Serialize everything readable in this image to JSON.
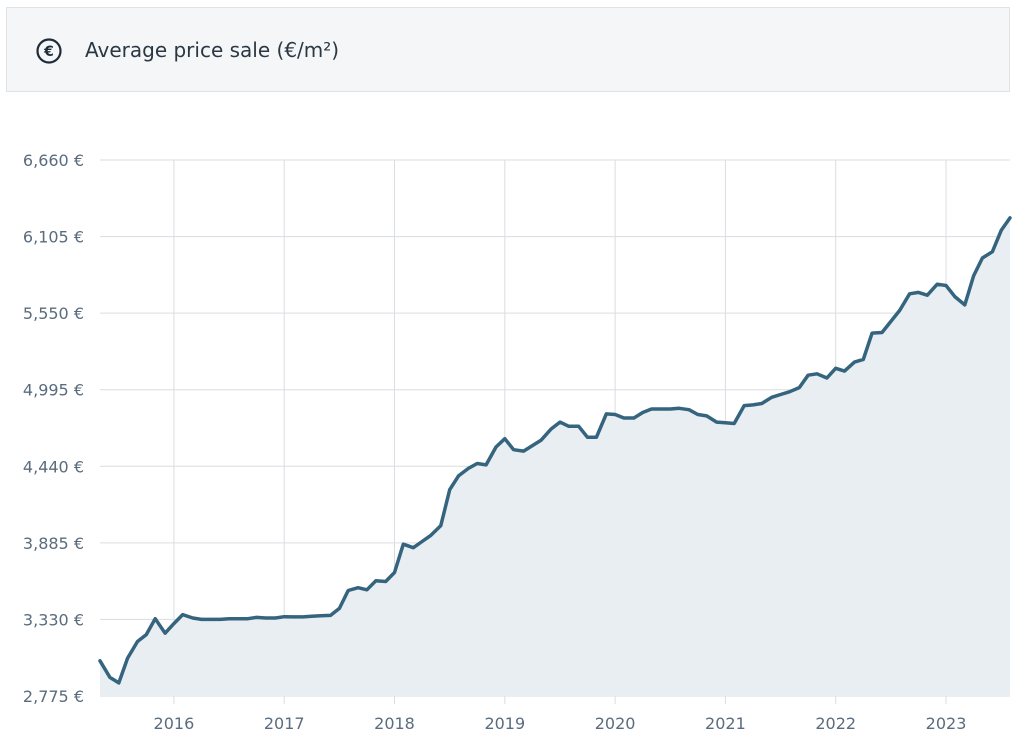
{
  "header": {
    "title": "Average price sale (€/m²)",
    "icon": "euro-circle-icon"
  },
  "colors": {
    "line": "#35647e",
    "area": "#e9eef3",
    "grid": "#dadde1",
    "tick_text": "#5a6c7d"
  },
  "chart_data": {
    "type": "area",
    "title": "Average price sale (€/m²)",
    "xlabel": "",
    "ylabel": "",
    "ylim": [
      2775,
      6660
    ],
    "xlim": [
      2015.33,
      2023.58
    ],
    "y_ticks": [
      6660,
      6105,
      5550,
      4995,
      4440,
      3885,
      3330,
      2775
    ],
    "y_tick_labels": [
      "6,660 €",
      "6,105 €",
      "5,550 €",
      "4,995 €",
      "4,440 €",
      "3,885 €",
      "3,330 €",
      "2,775 €"
    ],
    "x_ticks": [
      2016,
      2017,
      2018,
      2019,
      2020,
      2021,
      2022,
      2023
    ],
    "x_tick_labels": [
      "2016",
      "2017",
      "2018",
      "2019",
      "2020",
      "2021",
      "2022",
      "2023"
    ],
    "grid": true,
    "legend": "none",
    "series": [
      {
        "points": [
          [
            2015.33,
            3030
          ],
          [
            2015.42,
            2910
          ],
          [
            2015.5,
            2870
          ],
          [
            2015.58,
            3050
          ],
          [
            2015.67,
            3170
          ],
          [
            2015.75,
            3220
          ],
          [
            2015.83,
            3335
          ],
          [
            2015.92,
            3230
          ],
          [
            2016.0,
            3300
          ],
          [
            2016.08,
            3365
          ],
          [
            2016.17,
            3340
          ],
          [
            2016.25,
            3330
          ],
          [
            2016.33,
            3330
          ],
          [
            2016.42,
            3330
          ],
          [
            2016.5,
            3335
          ],
          [
            2016.58,
            3335
          ],
          [
            2016.67,
            3335
          ],
          [
            2016.75,
            3345
          ],
          [
            2016.83,
            3340
          ],
          [
            2016.92,
            3340
          ],
          [
            2017.0,
            3350
          ],
          [
            2017.08,
            3348
          ],
          [
            2017.17,
            3348
          ],
          [
            2017.25,
            3353
          ],
          [
            2017.33,
            3356
          ],
          [
            2017.42,
            3359
          ],
          [
            2017.5,
            3410
          ],
          [
            2017.58,
            3540
          ],
          [
            2017.67,
            3560
          ],
          [
            2017.75,
            3545
          ],
          [
            2017.83,
            3610
          ],
          [
            2017.92,
            3605
          ],
          [
            2018.0,
            3670
          ],
          [
            2018.08,
            3875
          ],
          [
            2018.17,
            3850
          ],
          [
            2018.25,
            3895
          ],
          [
            2018.33,
            3940
          ],
          [
            2018.42,
            4010
          ],
          [
            2018.5,
            4270
          ],
          [
            2018.58,
            4370
          ],
          [
            2018.67,
            4425
          ],
          [
            2018.75,
            4460
          ],
          [
            2018.83,
            4450
          ],
          [
            2018.92,
            4580
          ],
          [
            2019.0,
            4640
          ],
          [
            2019.08,
            4560
          ],
          [
            2019.17,
            4550
          ],
          [
            2019.25,
            4590
          ],
          [
            2019.33,
            4630
          ],
          [
            2019.42,
            4710
          ],
          [
            2019.5,
            4760
          ],
          [
            2019.58,
            4730
          ],
          [
            2019.67,
            4730
          ],
          [
            2019.75,
            4650
          ],
          [
            2019.83,
            4650
          ],
          [
            2019.92,
            4820
          ],
          [
            2020.0,
            4815
          ],
          [
            2020.08,
            4790
          ],
          [
            2020.17,
            4790
          ],
          [
            2020.25,
            4830
          ],
          [
            2020.33,
            4855
          ],
          [
            2020.42,
            4855
          ],
          [
            2020.5,
            4855
          ],
          [
            2020.58,
            4860
          ],
          [
            2020.67,
            4850
          ],
          [
            2020.75,
            4815
          ],
          [
            2020.83,
            4805
          ],
          [
            2020.92,
            4760
          ],
          [
            2021.0,
            4755
          ],
          [
            2021.08,
            4750
          ],
          [
            2021.17,
            4880
          ],
          [
            2021.25,
            4885
          ],
          [
            2021.33,
            4895
          ],
          [
            2021.42,
            4940
          ],
          [
            2021.5,
            4960
          ],
          [
            2021.58,
            4980
          ],
          [
            2021.67,
            5010
          ],
          [
            2021.75,
            5100
          ],
          [
            2021.83,
            5110
          ],
          [
            2021.92,
            5080
          ],
          [
            2022.0,
            5150
          ],
          [
            2022.08,
            5130
          ],
          [
            2022.17,
            5195
          ],
          [
            2022.25,
            5215
          ],
          [
            2022.33,
            5405
          ],
          [
            2022.42,
            5410
          ],
          [
            2022.5,
            5490
          ],
          [
            2022.58,
            5570
          ],
          [
            2022.67,
            5690
          ],
          [
            2022.75,
            5700
          ],
          [
            2022.83,
            5680
          ],
          [
            2022.92,
            5760
          ],
          [
            2023.0,
            5750
          ],
          [
            2023.08,
            5670
          ],
          [
            2023.17,
            5610
          ],
          [
            2023.25,
            5820
          ],
          [
            2023.33,
            5950
          ],
          [
            2023.42,
            5995
          ],
          [
            2023.5,
            6150
          ],
          [
            2023.58,
            6240
          ]
        ]
      }
    ]
  }
}
